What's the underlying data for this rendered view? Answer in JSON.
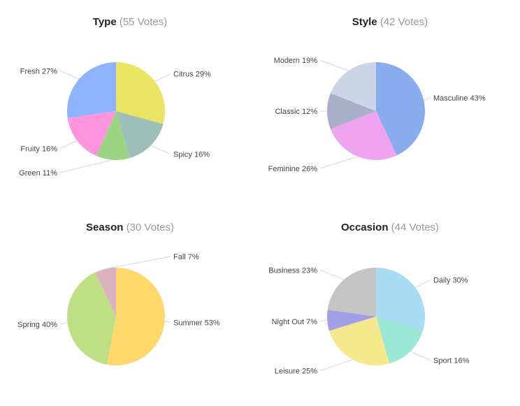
{
  "chart_data": [
    {
      "type": "pie",
      "title": "Type",
      "votes_text": "(55 Votes)",
      "slices": [
        {
          "label": "Citrus",
          "value": 29,
          "pct_text": "29%",
          "color": "#ebe463",
          "side": "right"
        },
        {
          "label": "Spicy",
          "value": 16,
          "pct_text": "16%",
          "color": "#9dbfb8",
          "side": "right"
        },
        {
          "label": "Green",
          "value": 11,
          "pct_text": "11%",
          "color": "#9bd483",
          "side": "left"
        },
        {
          "label": "Fruity",
          "value": 16,
          "pct_text": "16%",
          "color": "#ff95dc",
          "side": "left"
        },
        {
          "label": "Fresh",
          "value": 27,
          "pct_text": "27%",
          "color": "#8fb3ff",
          "side": "left"
        }
      ]
    },
    {
      "type": "pie",
      "title": "Style",
      "votes_text": "(42 Votes)",
      "slices": [
        {
          "label": "Masculine",
          "value": 43,
          "pct_text": "43%",
          "color": "#89acee",
          "side": "right"
        },
        {
          "label": "Feminine",
          "value": 26,
          "pct_text": "26%",
          "color": "#efa4ef",
          "side": "left"
        },
        {
          "label": "Classic",
          "value": 12,
          "pct_text": "12%",
          "color": "#a9afc8",
          "side": "left"
        },
        {
          "label": "Modern",
          "value": 19,
          "pct_text": "19%",
          "color": "#cbd5e8",
          "side": "left"
        }
      ]
    },
    {
      "type": "pie",
      "title": "Season",
      "votes_text": "(30 Votes)",
      "slices": [
        {
          "label": "Summer",
          "value": 53,
          "pct_text": "53%",
          "color": "#ffd76a",
          "side": "right"
        },
        {
          "label": "Spring",
          "value": 40,
          "pct_text": "40%",
          "color": "#bedf84",
          "side": "left"
        },
        {
          "label": "Fall",
          "value": 7,
          "pct_text": "7%",
          "color": "#dbb2c0",
          "side": "right"
        }
      ]
    },
    {
      "type": "pie",
      "title": "Occasion",
      "votes_text": "(44 Votes)",
      "slices": [
        {
          "label": "Daily",
          "value": 30,
          "pct_text": "30%",
          "color": "#a7dcf2",
          "side": "right"
        },
        {
          "label": "Sport",
          "value": 16,
          "pct_text": "16%",
          "color": "#9be8d4",
          "side": "right"
        },
        {
          "label": "Leisure",
          "value": 25,
          "pct_text": "25%",
          "color": "#f6e98d",
          "side": "left"
        },
        {
          "label": "Night Out",
          "value": 7,
          "pct_text": "7%",
          "color": "#a39ee8",
          "side": "left"
        },
        {
          "label": "Business",
          "value": 23,
          "pct_text": "23%",
          "color": "#c4c4c4",
          "side": "left"
        }
      ]
    }
  ]
}
